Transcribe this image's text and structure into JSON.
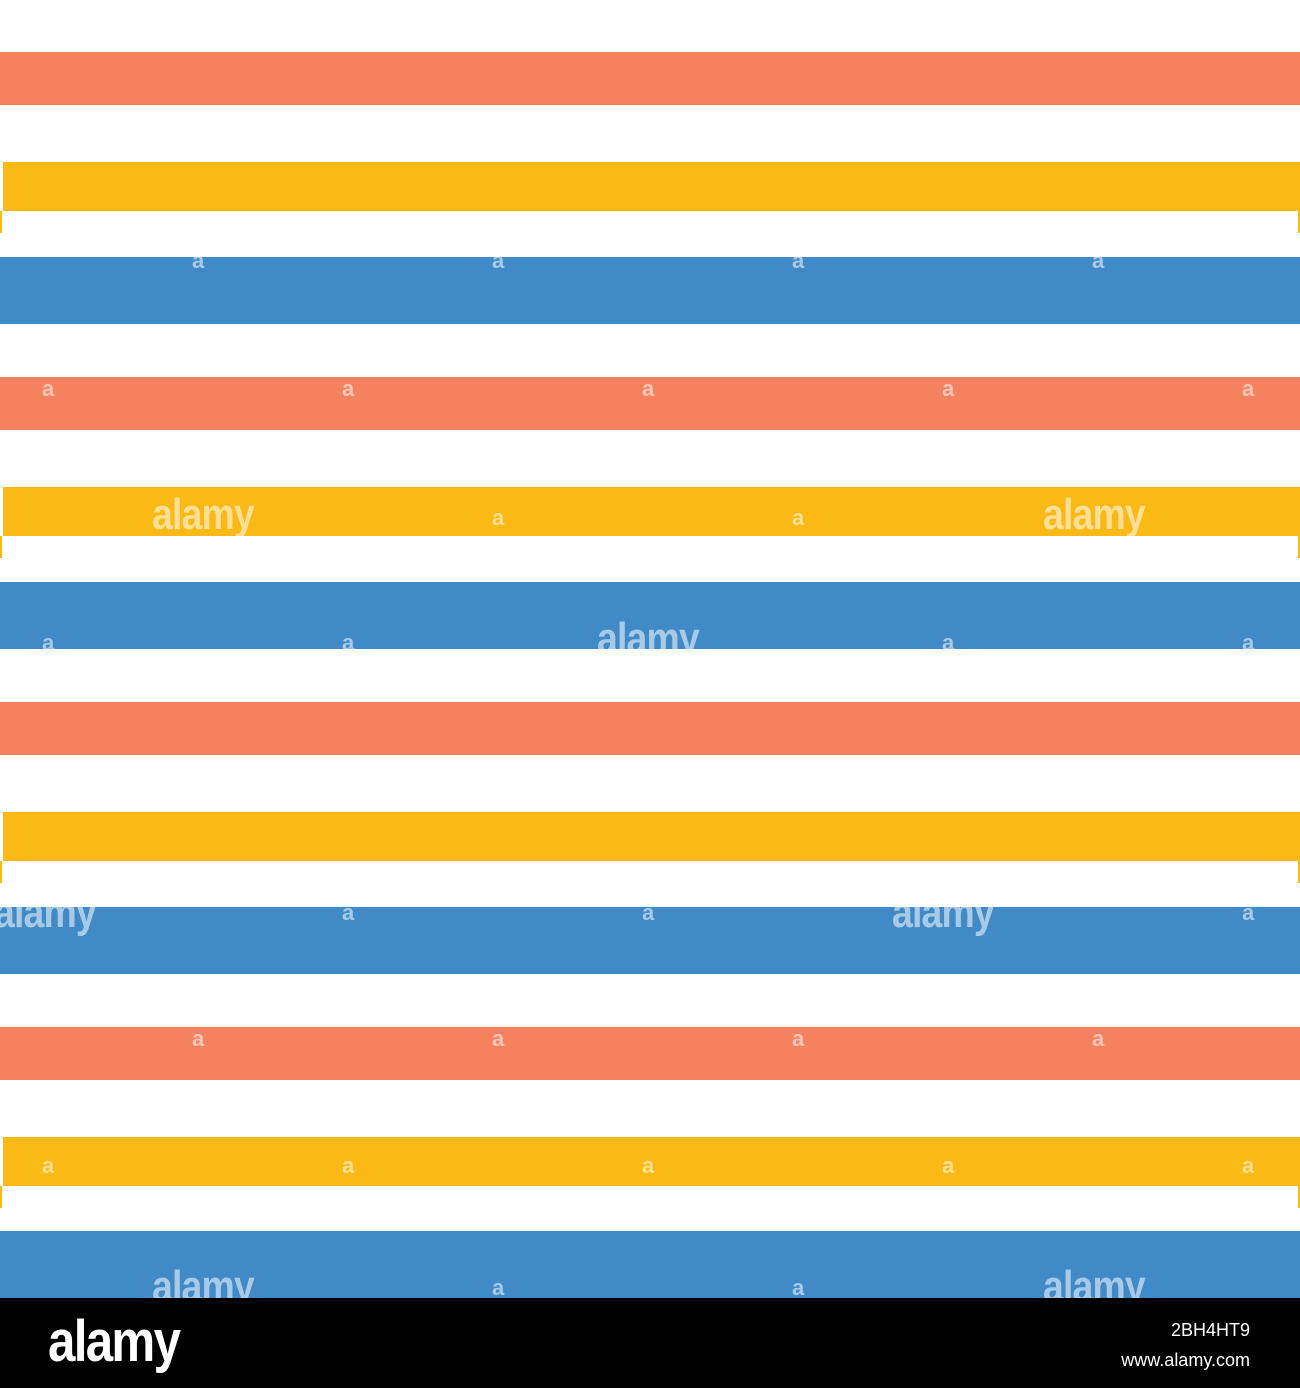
{
  "colors": {
    "coral": "#f5825f",
    "yellow": "#fab914",
    "blue": "#418ac8",
    "background": "#ffffff",
    "footer": "#000000"
  },
  "stripes": [
    "coral",
    "yellow",
    "blue",
    "coral",
    "yellow",
    "blue",
    "coral",
    "yellow",
    "blue",
    "coral",
    "yellow",
    "blue"
  ],
  "watermark": {
    "word": "alamy",
    "letter": "a"
  },
  "footer": {
    "logo": "alamy",
    "image_id": "2BH4HT9",
    "url": "www.alamy.com"
  }
}
